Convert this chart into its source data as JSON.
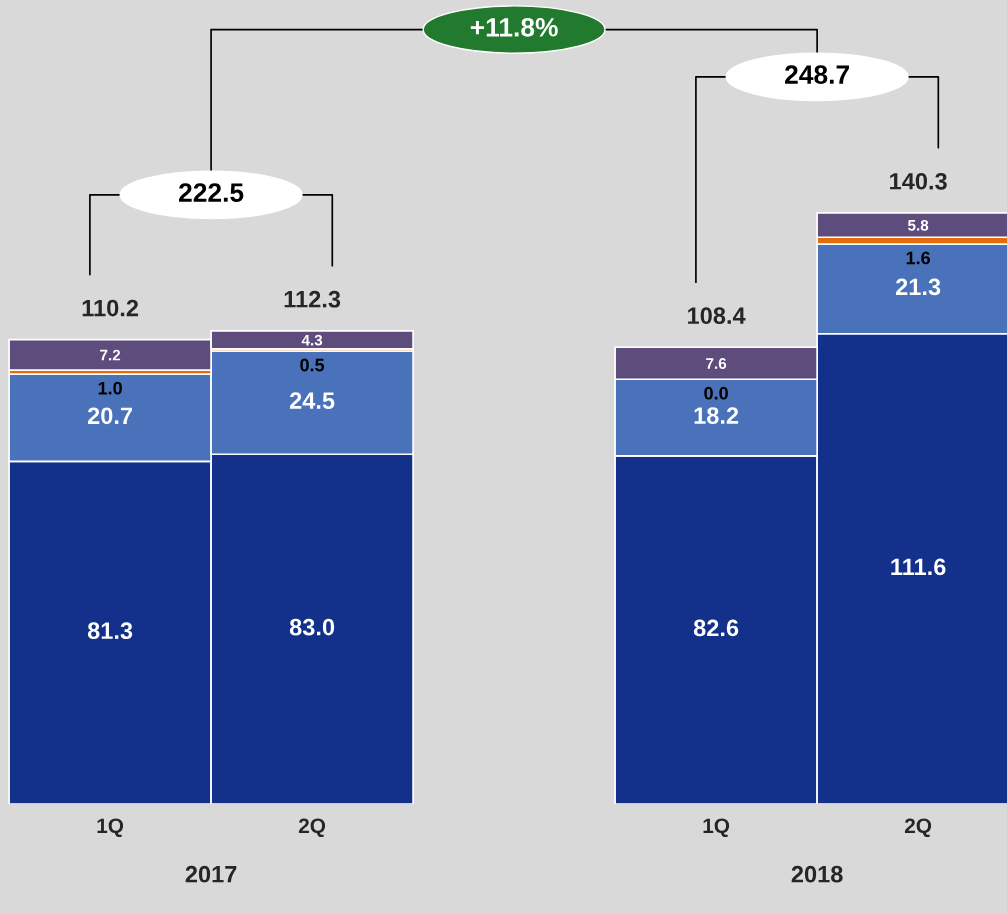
{
  "chart_data": {
    "type": "bar",
    "stacked": true,
    "categories": [
      "1Q",
      "2Q",
      null,
      "1Q",
      "2Q"
    ],
    "series": [
      {
        "color": "#13318a",
        "values": [
          81.3,
          83.0,
          null,
          82.6,
          111.6
        ],
        "value_labels": [
          "81.3",
          "83.0",
          null,
          "82.6",
          "111.6"
        ]
      },
      {
        "color": "#4a72ba",
        "values": [
          20.7,
          24.5,
          null,
          18.2,
          21.3
        ],
        "value_labels": [
          "20.7",
          "24.5",
          null,
          "18.2",
          "21.3"
        ]
      },
      {
        "color": "#e46c0a",
        "values": [
          1.0,
          0.5,
          null,
          0.0,
          1.6
        ],
        "value_labels": [
          "1.0",
          "0.5",
          null,
          "0.0",
          "1.6"
        ]
      },
      {
        "color": "#5e4c7c",
        "values": [
          7.2,
          4.3,
          null,
          7.6,
          5.8
        ],
        "value_labels": [
          "7.2",
          "4.3",
          null,
          "7.6",
          "5.8"
        ]
      }
    ],
    "totals": [
      "110.2",
      "112.3",
      null,
      "108.4",
      "140.3"
    ],
    "annotations": [
      "222.5",
      "248.7",
      "+11.8%",
      "2017",
      "2018"
    ]
  }
}
